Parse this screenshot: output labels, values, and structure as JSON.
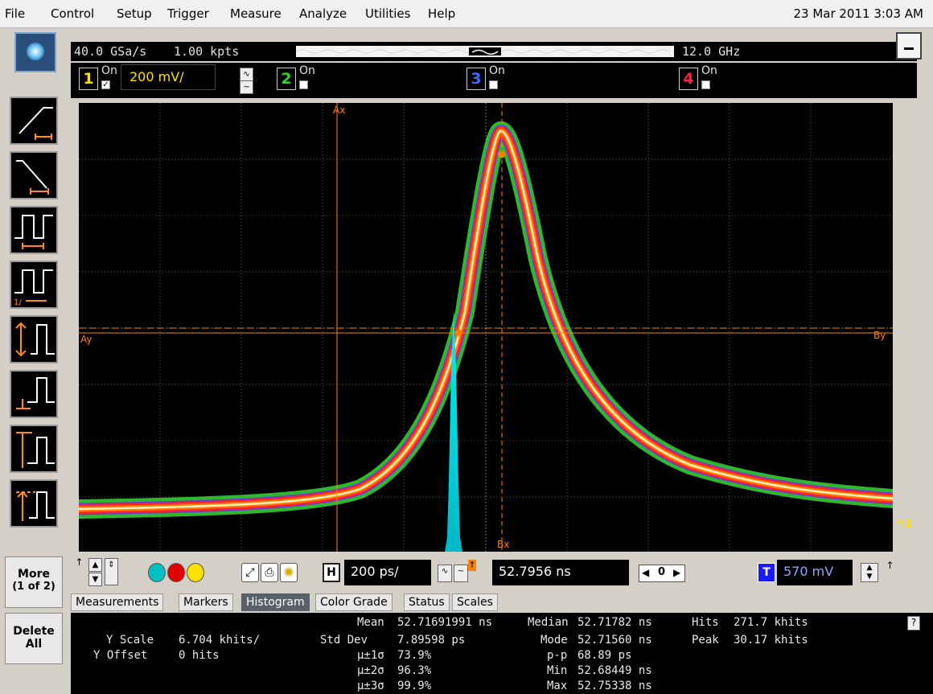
{
  "menu": {
    "items": [
      "File",
      "Control",
      "Setup",
      "Trigger",
      "Measure",
      "Analyze",
      "Utilities",
      "Help"
    ],
    "datetime": "23 Mar 2011  3:03 AM"
  },
  "acquisition": {
    "sample_rate": "40.0 GSa/s",
    "memory_depth": "1.00 kpts",
    "bandwidth": "12.0 GHz"
  },
  "channels": [
    {
      "number": "1",
      "on_label": "On",
      "enabled": true,
      "color": "#ffe000",
      "scale": "200 mV/"
    },
    {
      "number": "2",
      "on_label": "On",
      "enabled": false,
      "color": "#22dd22"
    },
    {
      "number": "3",
      "on_label": "On",
      "enabled": false,
      "color": "#3b6cff"
    },
    {
      "number": "4",
      "on_label": "On",
      "enabled": false,
      "color": "#ff2040"
    }
  ],
  "markers": {
    "ax": "Ax",
    "ay": "Ay",
    "bx": "Bx",
    "by": "By"
  },
  "trigger_level_icon": "trigger-level-1",
  "sidebar": {
    "more_label": "More",
    "more_sub": "(1 of 2)",
    "delete_label": "Delete",
    "delete_sub": "All"
  },
  "timebase": {
    "h_label": "H",
    "scale": "200 ps/",
    "delay": "52.7956 ns",
    "nav_center": "0",
    "trigger_label": "T",
    "trigger_level": "570 mV"
  },
  "tabs": [
    "Measurements",
    "Markers",
    "Histogram",
    "Color Grade",
    "Status",
    "Scales"
  ],
  "active_tab": "Histogram",
  "histogram": {
    "y_scale_label": "Y Scale",
    "y_scale_value": "6.704 khits/",
    "y_offset_label": "Y Offset",
    "y_offset_value": "0 hits",
    "mean_label": "Mean",
    "mean_value": "52.71691991 ns",
    "stddev_label": "Std Dev",
    "stddev_value": "7.89598 ps",
    "s1_label": "μ±1σ",
    "s1_value": "73.9%",
    "s2_label": "μ±2σ",
    "s2_value": "96.3%",
    "s3_label": "μ±3σ",
    "s3_value": "99.9%",
    "median_label": "Median",
    "median_value": "52.71782 ns",
    "mode_label": "Mode",
    "mode_value": "52.71560 ns",
    "pp_label": "p-p",
    "pp_value": "68.89 ps",
    "min_label": "Min",
    "min_value": "52.68449 ns",
    "max_label": "Max",
    "max_value": "52.75338 ns",
    "hits_label": "Hits",
    "hits_value": "271.7 khits",
    "peak_label": "Peak",
    "peak_value": "30.17 khits"
  },
  "colors": {
    "grid": "#707070",
    "marker": "#ff7f00",
    "histogram": "#00e5e5",
    "grade_outer": "#33cc33",
    "grade_mid": "#ff6600",
    "grade_core": "#ffffff",
    "accent_blue": "#1a1aff"
  }
}
